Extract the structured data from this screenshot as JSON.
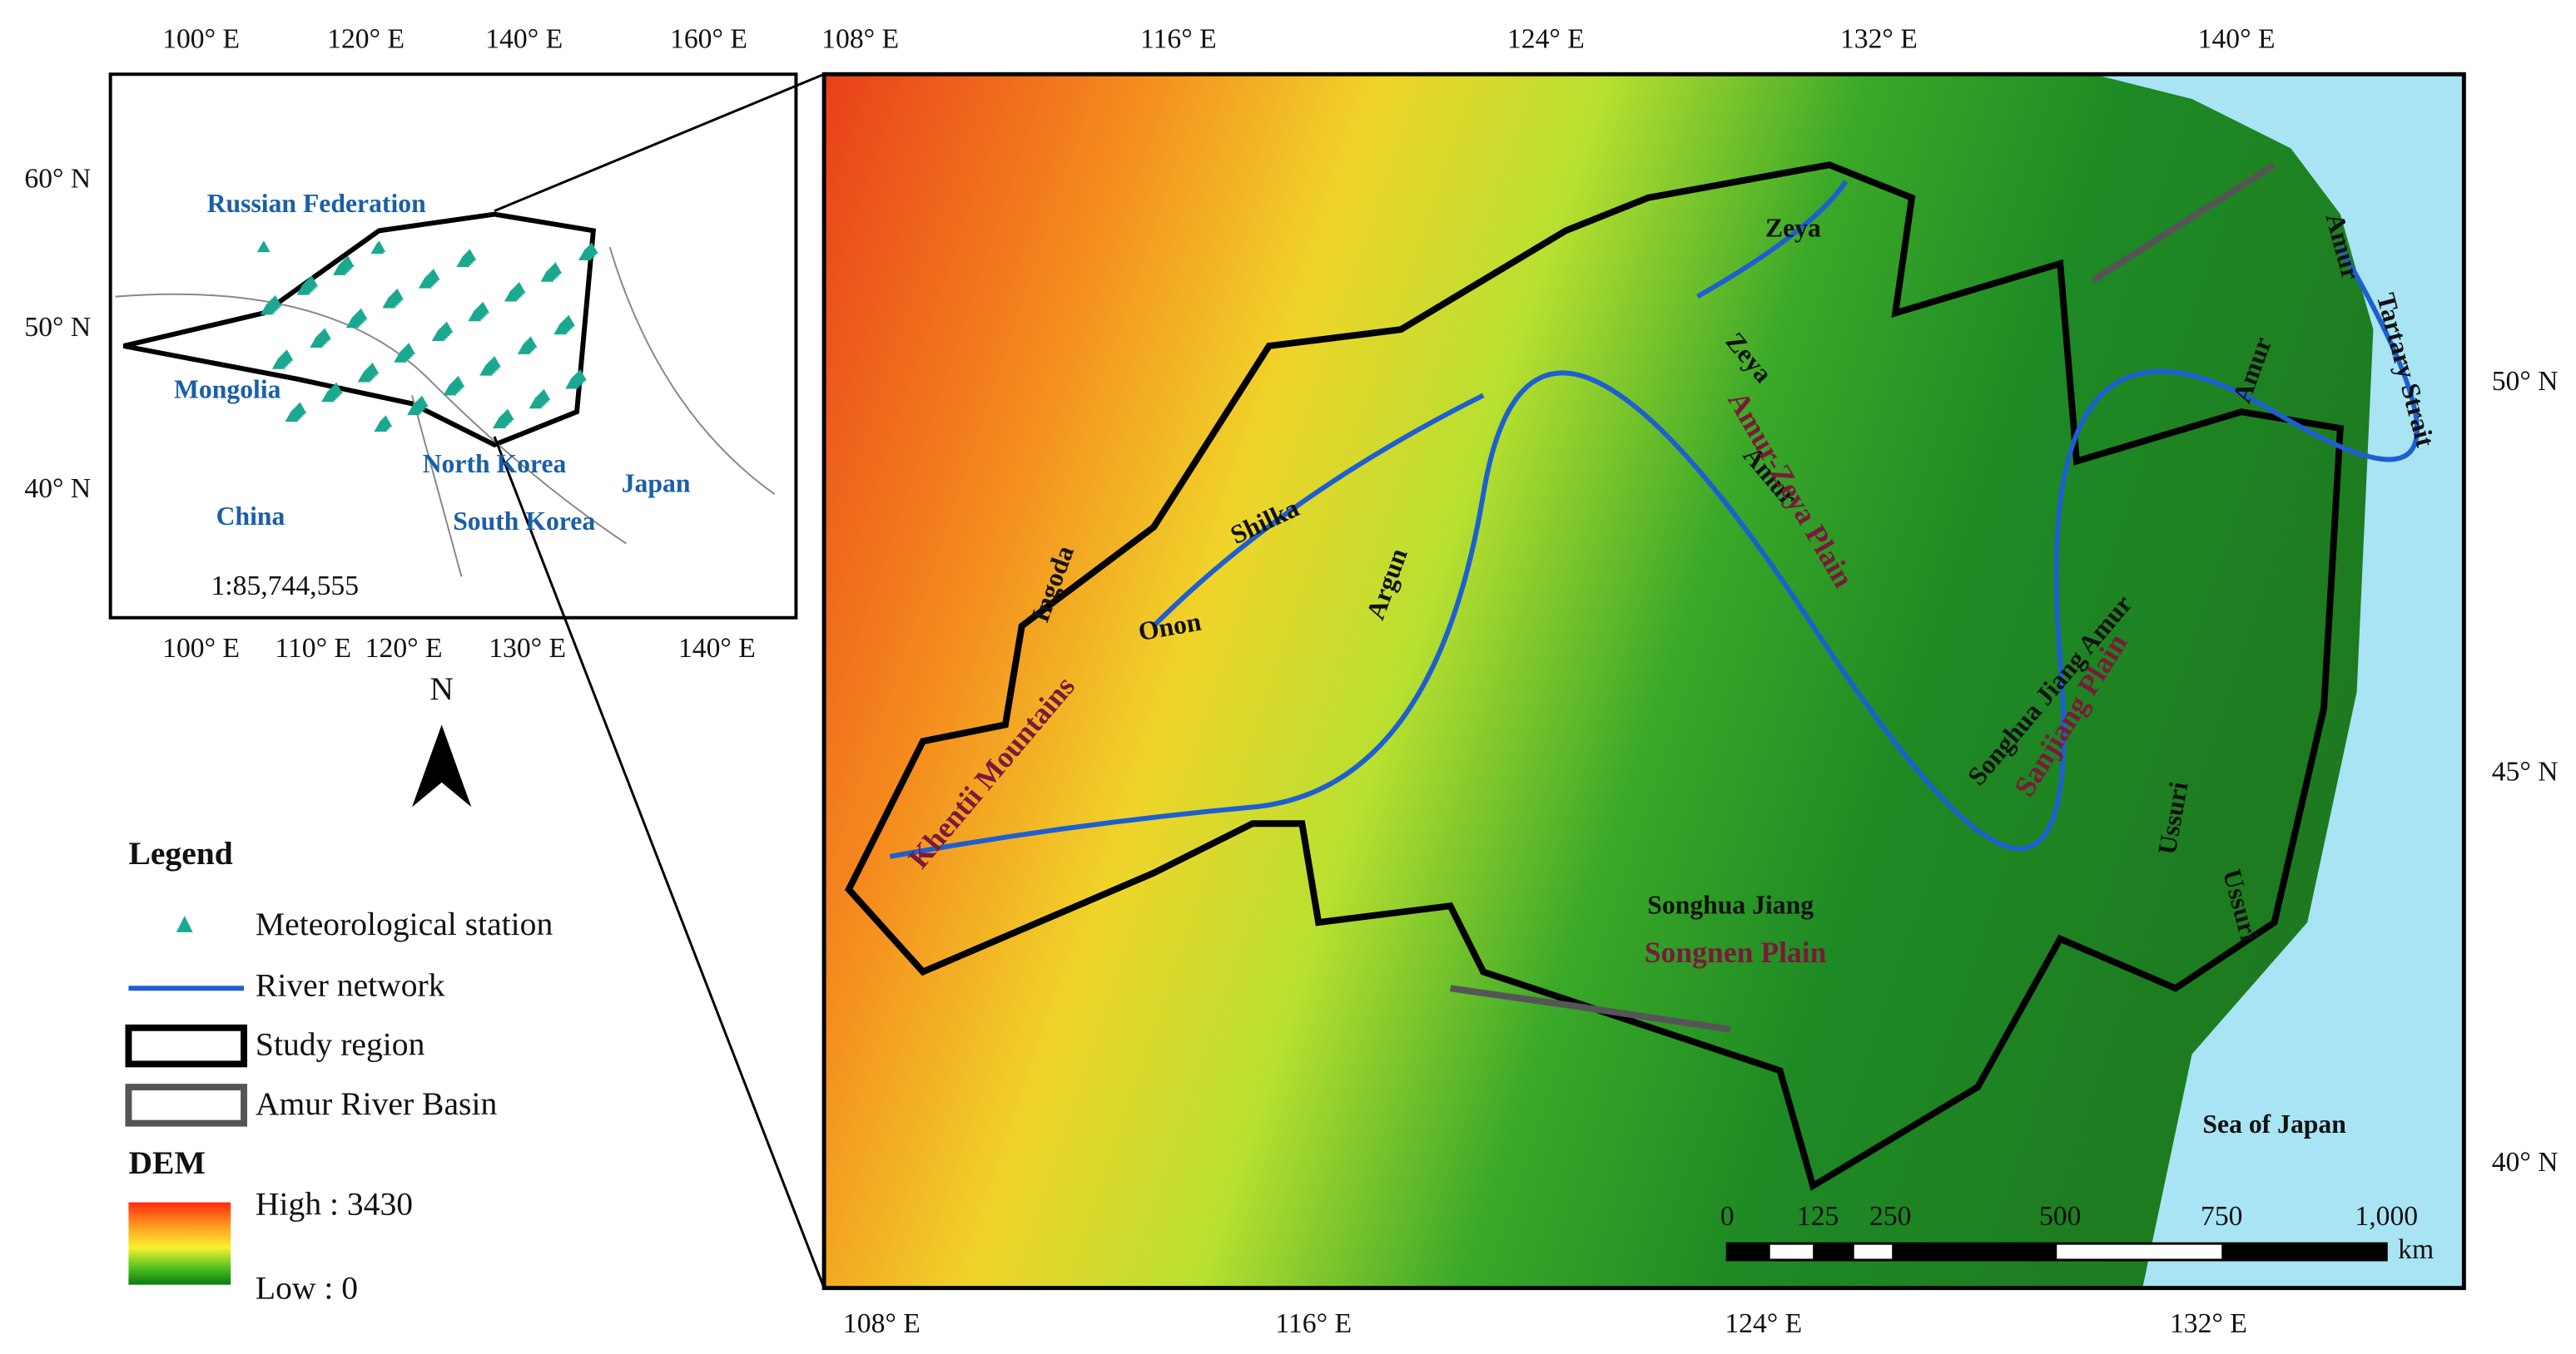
{
  "inset": {
    "top_ticks": [
      "100° E",
      "120° E",
      "140° E",
      "160° E"
    ],
    "bottom_ticks": [
      "100° E",
      "110° E",
      "120° E",
      "130° E",
      "140° E"
    ],
    "left_ticks": [
      "60° N",
      "50° N",
      "40° N"
    ],
    "labels": [
      "Russian Federation",
      "Mongolia",
      "China",
      "North Korea",
      "South Korea",
      "Japan"
    ],
    "scale": "1:85,744,555"
  },
  "north": "N",
  "legend": {
    "title": "Legend",
    "items": [
      "Meteorological station",
      "River network",
      "Study region",
      "Amur River Basin"
    ],
    "dem_title": "DEM",
    "high": "High : 3430",
    "low": "Low : 0"
  },
  "main": {
    "top_ticks": [
      "108° E",
      "116° E",
      "124° E",
      "132° E",
      "140° E"
    ],
    "bottom_ticks": [
      "108° E",
      "116° E",
      "124° E",
      "132° E"
    ],
    "right_ticks": [
      "50° N",
      "45° N",
      "40° N"
    ],
    "rivers": [
      "Zeya",
      "Zeya",
      "Amur",
      "Shilka",
      "Argun",
      "Onon",
      "Ingoda",
      "Amur",
      "Amur",
      "Songhua Jiang",
      "Songhua Jiang Amur",
      "Ussuri",
      "Ussuri",
      "Tartary Strait",
      "Sea of Japan"
    ],
    "regions": [
      "Amur-Zeya Plain",
      "Sanjiang Plain",
      "Songnen Plain",
      "Khentii Mountains"
    ]
  },
  "scale_bar": {
    "ticks": [
      "0",
      "125",
      "250",
      "500",
      "750",
      "1,000"
    ],
    "unit": "km"
  }
}
